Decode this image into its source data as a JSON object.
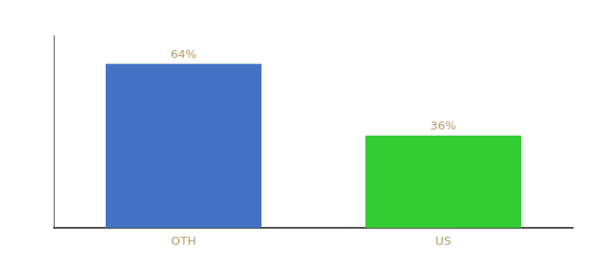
{
  "chart_data": {
    "type": "bar",
    "categories": [
      "OTH",
      "US"
    ],
    "values": [
      64,
      36
    ],
    "value_labels": [
      "64%",
      "36%"
    ],
    "colors": [
      "#4472c4",
      "#33cc33"
    ],
    "ylim": [
      0,
      75
    ],
    "grid": false,
    "data_labels": true,
    "tick_labels": "x"
  }
}
